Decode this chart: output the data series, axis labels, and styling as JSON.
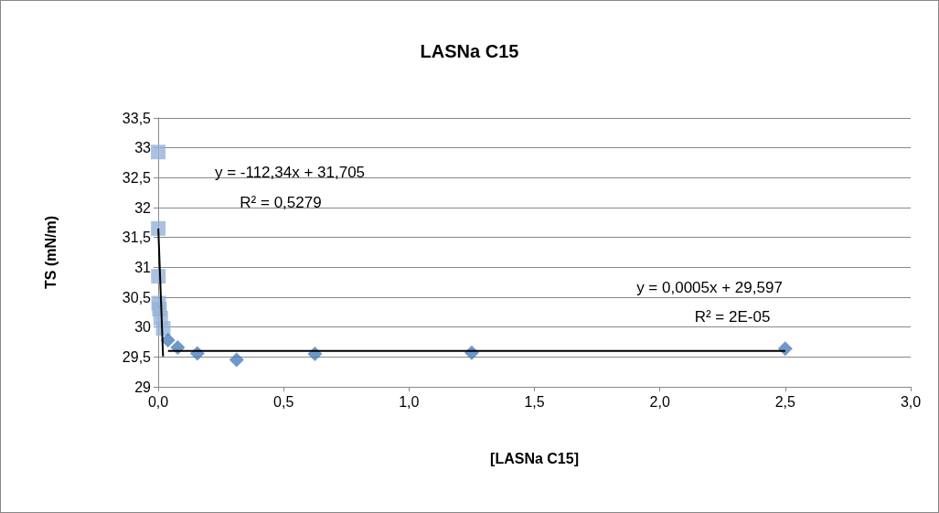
{
  "chart_data": {
    "type": "scatter",
    "title": "LASNa C15",
    "xlabel": "[LASNa C15]",
    "ylabel": "TS (mN/m)",
    "xlim": [
      0,
      3
    ],
    "xticks": [
      {
        "value": 0,
        "label": "0,0"
      },
      {
        "value": 0.5,
        "label": "0,5"
      },
      {
        "value": 1,
        "label": "1,0"
      },
      {
        "value": 1.5,
        "label": "1,5"
      },
      {
        "value": 2,
        "label": "2,0"
      },
      {
        "value": 2.5,
        "label": "2,5"
      },
      {
        "value": 3,
        "label": "3,0"
      }
    ],
    "ylim": [
      29,
      33.5
    ],
    "yticks": [
      29,
      {
        "value": 29.5,
        "label": "29,5"
      },
      30,
      {
        "value": 30.5,
        "label": "30,5"
      },
      31,
      {
        "value": 31.5,
        "label": "31,5"
      },
      32,
      {
        "value": 32.5,
        "label": "32,5"
      },
      33,
      {
        "value": 33.5,
        "label": "33,5"
      }
    ],
    "grid": "y",
    "series": [
      {
        "marker": "square",
        "color": "#95b3d7",
        "x": [
          0.0002,
          0.0005,
          0.001,
          0.002,
          0.005,
          0.01,
          0.02
        ],
        "values": [
          32.93,
          31.65,
          30.85,
          30.4,
          30.3,
          30.15,
          29.98
        ]
      },
      {
        "marker": "diamond",
        "color": "#4a7ebb",
        "x": [
          0.039,
          0.078,
          0.156,
          0.3125,
          0.625,
          1.25,
          2.5
        ],
        "values": [
          29.78,
          29.66,
          29.56,
          29.45,
          29.55,
          29.57,
          29.64
        ]
      },
      {
        "type": "line",
        "marker": "none",
        "color": "#000000",
        "x": [
          0.0005,
          0.0195
        ],
        "values": [
          31.65,
          29.51
        ]
      },
      {
        "type": "line",
        "marker": "none",
        "color": "#000000",
        "x": [
          0.039,
          2.5
        ],
        "values": [
          29.6,
          29.6
        ]
      }
    ],
    "annotations": [
      "y = -112,34x + 31,705",
      "R² = 0,5279",
      "y = 0,0005x + 29,597",
      "R² = 2E-05"
    ]
  }
}
